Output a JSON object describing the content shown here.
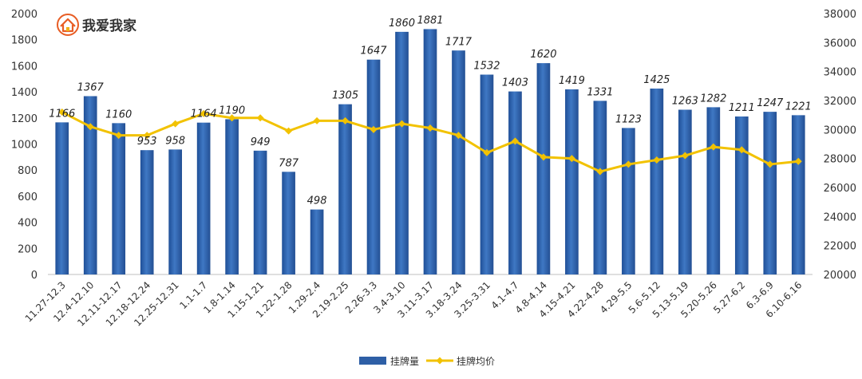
{
  "logo": {
    "text": "我爱我家"
  },
  "chart_data": {
    "type": "bar",
    "categories": [
      "11.27-12.3",
      "12.4-12.10",
      "12.11-12.17",
      "12.18-12.24",
      "12.25-12.31",
      "1.1-1.7",
      "1.8-1.14",
      "1.15-1.21",
      "1.22-1.28",
      "1.29-2.4",
      "2.19-2.25",
      "2.26-3.3",
      "3.4-3.10",
      "3.11-3.17",
      "3.18-3.24",
      "3.25-3.31",
      "4.1-4.7",
      "4.8-4.14",
      "4.15-4.21",
      "4.22-4.28",
      "4.29-5.5",
      "5.6-5.12",
      "5.13-5.19",
      "5.20-5.26",
      "5.27-6.2",
      "6.3-6.9",
      "6.10-6.16"
    ],
    "series": [
      {
        "name": "挂牌量",
        "type": "bar",
        "axis": "left",
        "color": "#2e5fa6",
        "values": [
          1166,
          1367,
          1160,
          953,
          958,
          1164,
          1190,
          949,
          787,
          498,
          1305,
          1647,
          1860,
          1881,
          1717,
          1532,
          1403,
          1620,
          1419,
          1331,
          1123,
          1425,
          1263,
          1282,
          1211,
          1247,
          1221
        ]
      },
      {
        "name": "挂牌均价",
        "type": "line",
        "axis": "right",
        "color": "#f2c200",
        "values": [
          31200,
          30200,
          29600,
          29600,
          30400,
          31100,
          30800,
          30800,
          29900,
          30600,
          30600,
          30000,
          30400,
          30100,
          29600,
          28400,
          29200,
          28100,
          28000,
          27100,
          27600,
          27900,
          28200,
          28800,
          28600,
          27600,
          27800
        ]
      }
    ],
    "ylim_left": [
      0,
      2000
    ],
    "ytick_step_left": 200,
    "ylim_right": [
      20000,
      38000
    ],
    "ytick_step_right": 2000,
    "legend": "bottom-center",
    "grid": false
  }
}
